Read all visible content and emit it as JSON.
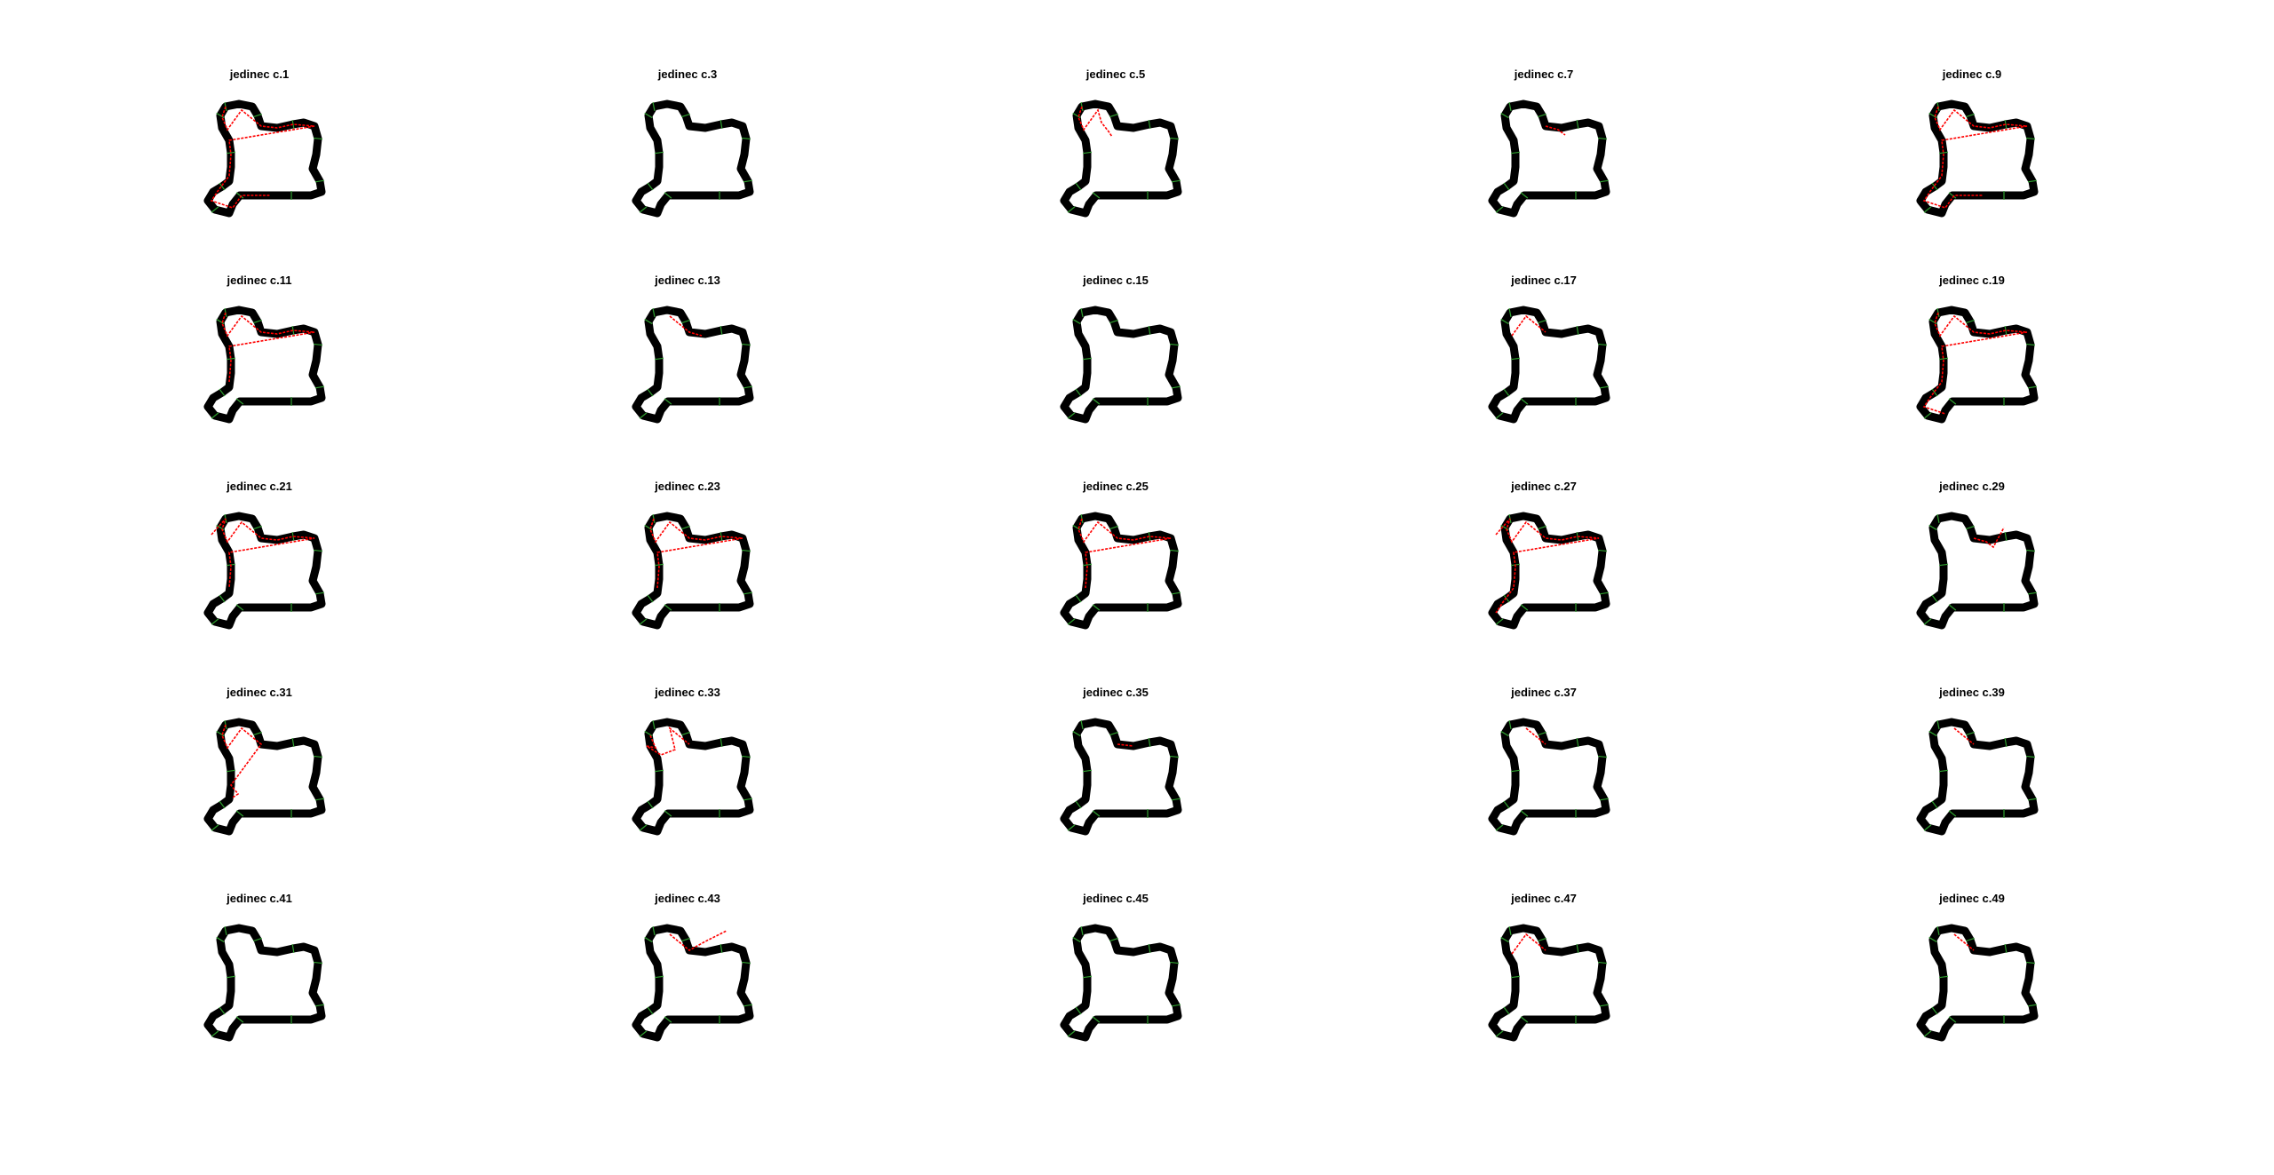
{
  "figure": {
    "background": "#ffffff",
    "track_color": "#000000",
    "checkpoint_color": "#2e9e2e",
    "trajectory_color": "#ff0000",
    "panels": [
      {
        "title": "jedinec c.1",
        "trace": [
          "n0",
          "n1",
          "n2",
          "n3",
          "n4",
          "n5",
          "n6",
          "n7",
          "n8",
          "n9",
          "n10",
          "n11",
          "n12",
          "n13",
          "n14",
          "n15"
        ]
      },
      {
        "title": "jedinec c.3",
        "trace": []
      },
      {
        "title": "jedinec c.5",
        "trace": [
          "n0",
          "n1",
          "n2",
          "n3",
          "x33",
          "x34",
          "x35"
        ]
      },
      {
        "title": "jedinec c.7",
        "trace": [
          "n4",
          "x36",
          "x37"
        ]
      },
      {
        "title": "jedinec c.9",
        "trace": [
          "n0",
          "n1",
          "n2",
          "n3",
          "n4",
          "n5",
          "n6",
          "n7",
          "n8",
          "n9",
          "n10",
          "n11",
          "n12",
          "n13",
          "n14",
          "n15"
        ]
      },
      {
        "title": "jedinec c.11",
        "trace": [
          "n0",
          "n1",
          "n2",
          "n3",
          "n4",
          "n5",
          "n6",
          "n7",
          "n8",
          "n9",
          "n10"
        ]
      },
      {
        "title": "jedinec c.13",
        "trace": [
          "n3",
          "n4",
          "x36"
        ]
      },
      {
        "title": "jedinec c.15",
        "trace": []
      },
      {
        "title": "jedinec c.17",
        "trace": [
          "n2",
          "n3",
          "n4"
        ]
      },
      {
        "title": "jedinec c.19",
        "trace": [
          "n0",
          "n1",
          "n2",
          "n3",
          "n4",
          "n5",
          "n6",
          "n7",
          "n8",
          "n9",
          "n10",
          "n11",
          "n12",
          "n13"
        ]
      },
      {
        "title": "jedinec c.21",
        "trace": [
          "x30",
          "n0",
          "n1",
          "n2",
          "n3",
          "n4",
          "n5",
          "n6",
          "n7",
          "n8",
          "n9",
          "n10"
        ]
      },
      {
        "title": "jedinec c.23",
        "trace": [
          "n0",
          "n1",
          "n2",
          "n3",
          "n4",
          "n5",
          "n6",
          "n7",
          "n8",
          "n9",
          "n10"
        ]
      },
      {
        "title": "jedinec c.25",
        "trace": [
          "n0",
          "n1",
          "n2",
          "n3",
          "n4",
          "n5",
          "n6",
          "n7",
          "n8",
          "n9",
          "n10"
        ]
      },
      {
        "title": "jedinec c.27",
        "trace": [
          "x30",
          "n0",
          "n1",
          "n2",
          "n3",
          "n4",
          "n5",
          "n6",
          "n7",
          "n8",
          "n9",
          "n10",
          "n11",
          "n12"
        ]
      },
      {
        "title": "jedinec c.29",
        "trace": [
          "n4",
          "x36",
          "x37",
          "x38"
        ]
      },
      {
        "title": "jedinec c.31",
        "trace": [
          "n0",
          "n1",
          "n2",
          "n3",
          "n4",
          "x39",
          "x40",
          "x41"
        ]
      },
      {
        "title": "jedinec c.33",
        "trace": [
          "n1",
          "n2",
          "x42",
          "x43",
          "x44",
          "n3",
          "n4"
        ]
      },
      {
        "title": "jedinec c.35",
        "trace": [
          "n4",
          "n5"
        ]
      },
      {
        "title": "jedinec c.37",
        "trace": [
          "n3",
          "n4"
        ]
      },
      {
        "title": "jedinec c.39",
        "trace": [
          "n3",
          "n4"
        ]
      },
      {
        "title": "jedinec c.41",
        "trace": []
      },
      {
        "title": "jedinec c.43",
        "trace": [
          "n3",
          "n4",
          "x45",
          "x46",
          "x47"
        ]
      },
      {
        "title": "jedinec c.45",
        "trace": []
      },
      {
        "title": "jedinec c.47",
        "trace": [
          "n2",
          "n3",
          "n4"
        ]
      },
      {
        "title": "jedinec c.49",
        "trace": [
          "n3",
          "n4"
        ]
      }
    ]
  }
}
